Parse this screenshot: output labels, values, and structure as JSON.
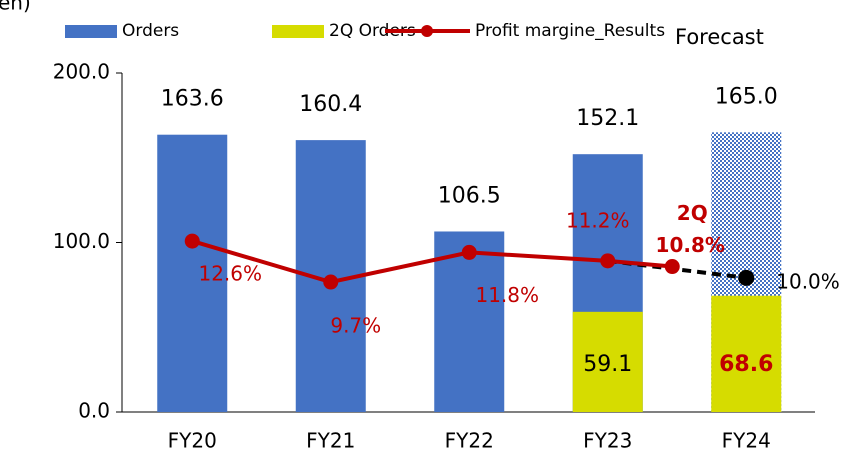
{
  "chart_data": {
    "type": "bar",
    "y_axis_label": "en)",
    "forecast_label": "Forecast",
    "forecast_category": "FY24",
    "categories": [
      "FY20",
      "FY21",
      "FY22",
      "FY23",
      "FY24"
    ],
    "series": [
      {
        "name": "Orders",
        "color": "#4472c4",
        "values": [
          163.6,
          160.4,
          106.5,
          152.1,
          165.0
        ],
        "value_labels": [
          "163.6",
          "160.4",
          "106.5",
          "152.1",
          "165.0"
        ]
      },
      {
        "name": "2Q Orders",
        "color": "#d6dc00",
        "values": [
          null,
          null,
          null,
          59.1,
          68.6
        ],
        "value_labels": [
          null,
          null,
          null,
          "59.1",
          "68.6"
        ]
      },
      {
        "name": "Profit margine_Results",
        "color": "#c00000",
        "axis": "y2",
        "values": [
          12.6,
          9.7,
          11.8,
          11.2,
          10.8
        ],
        "value_labels": [
          "12.6%",
          "9.7%",
          "11.8%",
          "11.2%",
          "10.8%"
        ],
        "annotation": "2Q"
      }
    ],
    "margin_forecast": {
      "color": "#000000",
      "axis": "y2",
      "values": [
        null,
        null,
        null,
        null,
        10.0
      ],
      "value_labels": [
        null,
        null,
        null,
        null,
        "10.0%"
      ]
    },
    "ylim": [
      0,
      200
    ],
    "yticks": [
      {
        "value": 0,
        "label": "0.0"
      },
      {
        "value": 100,
        "label": "100.0"
      },
      {
        "value": 200,
        "label": "200.0"
      }
    ],
    "y2lim": [
      0.5,
      24.5
    ]
  }
}
